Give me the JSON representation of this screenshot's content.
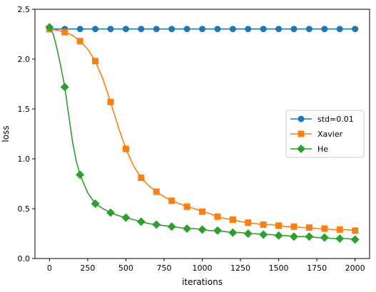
{
  "chart_data": {
    "type": "line",
    "title": "",
    "xlabel": "iterations",
    "ylabel": "loss",
    "xlim": [
      -95,
      2095
    ],
    "ylim": [
      0,
      2.5
    ],
    "xticks": [
      0,
      250,
      500,
      750,
      1000,
      1250,
      1500,
      1750,
      2000
    ],
    "xtick_labels": [
      "0",
      "250",
      "500",
      "750",
      "1000",
      "1250",
      "1500",
      "1750",
      "2000"
    ],
    "yticks": [
      0.0,
      0.5,
      1.0,
      1.5,
      2.0,
      2.5
    ],
    "ytick_labels": [
      "0.0",
      "0.5",
      "1.0",
      "1.5",
      "2.0",
      "2.5"
    ],
    "grid": false,
    "legend_position": "center-right",
    "series": [
      {
        "name": "std=0.01",
        "color": "#1f77b4",
        "marker": "circle",
        "x": [
          0,
          100,
          200,
          300,
          400,
          500,
          600,
          700,
          800,
          900,
          1000,
          1100,
          1200,
          1300,
          1400,
          1500,
          1600,
          1700,
          1800,
          1900,
          2000
        ],
        "y": [
          2.302,
          2.302,
          2.302,
          2.302,
          2.302,
          2.302,
          2.302,
          2.302,
          2.302,
          2.302,
          2.302,
          2.302,
          2.302,
          2.302,
          2.302,
          2.302,
          2.302,
          2.302,
          2.302,
          2.302,
          2.302
        ]
      },
      {
        "name": "Xavier",
        "color": "#ff7f0e",
        "marker": "square",
        "x": [
          0,
          50,
          100,
          150,
          200,
          250,
          300,
          350,
          400,
          450,
          500,
          550,
          600,
          650,
          700,
          750,
          800,
          850,
          900,
          950,
          1000,
          1050,
          1100,
          1150,
          1200,
          1250,
          1300,
          1350,
          1400,
          1450,
          1500,
          1550,
          1600,
          1650,
          1700,
          1750,
          1800,
          1850,
          1900,
          1950,
          2000
        ],
        "y": [
          2.3,
          2.29,
          2.27,
          2.24,
          2.18,
          2.1,
          1.98,
          1.8,
          1.57,
          1.32,
          1.1,
          0.93,
          0.81,
          0.73,
          0.67,
          0.62,
          0.58,
          0.55,
          0.52,
          0.5,
          0.47,
          0.45,
          0.42,
          0.4,
          0.39,
          0.37,
          0.36,
          0.35,
          0.34,
          0.34,
          0.33,
          0.32,
          0.32,
          0.31,
          0.31,
          0.3,
          0.3,
          0.29,
          0.29,
          0.29,
          0.28
        ]
      },
      {
        "name": "He",
        "color": "#2ca02c",
        "marker": "diamond",
        "x": [
          0,
          25,
          50,
          75,
          100,
          125,
          150,
          175,
          200,
          250,
          300,
          350,
          400,
          450,
          500,
          550,
          600,
          650,
          700,
          750,
          800,
          850,
          900,
          950,
          1000,
          1050,
          1100,
          1150,
          1200,
          1250,
          1300,
          1350,
          1400,
          1450,
          1500,
          1550,
          1600,
          1650,
          1700,
          1750,
          1800,
          1850,
          1900,
          1950,
          2000
        ],
        "y": [
          2.32,
          2.25,
          2.1,
          1.92,
          1.72,
          1.45,
          1.18,
          0.98,
          0.84,
          0.66,
          0.55,
          0.5,
          0.46,
          0.43,
          0.41,
          0.39,
          0.37,
          0.35,
          0.34,
          0.33,
          0.32,
          0.31,
          0.3,
          0.3,
          0.29,
          0.28,
          0.28,
          0.27,
          0.26,
          0.26,
          0.25,
          0.25,
          0.24,
          0.24,
          0.23,
          0.23,
          0.22,
          0.22,
          0.22,
          0.21,
          0.21,
          0.2,
          0.2,
          0.2,
          0.19
        ]
      }
    ]
  }
}
